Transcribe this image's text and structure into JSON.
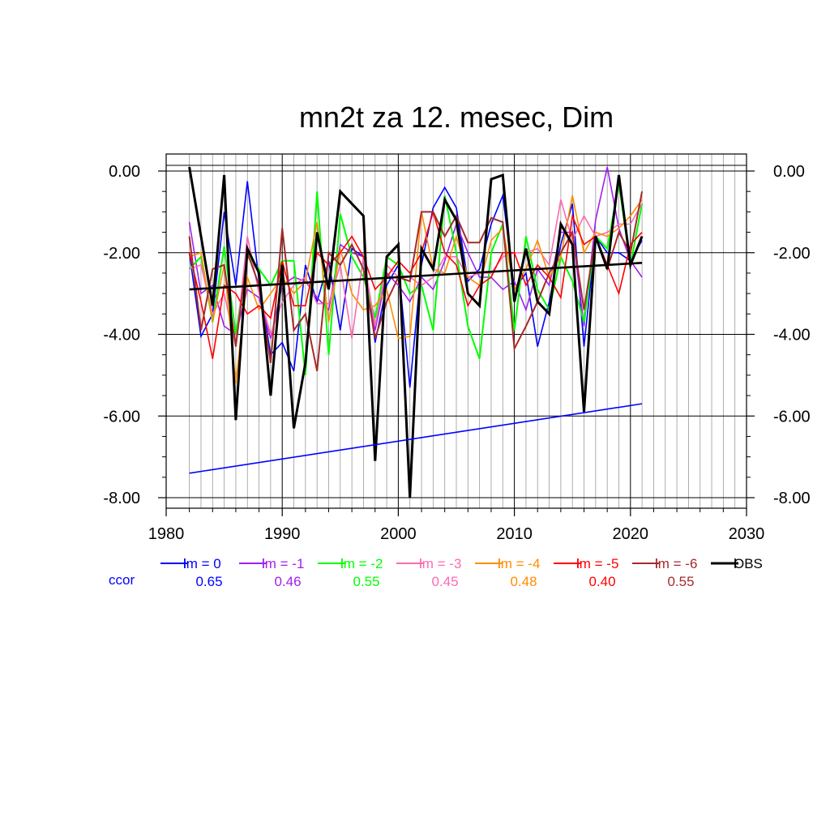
{
  "chart_data": {
    "type": "line",
    "title": "mn2t za 12. mesec, Dim",
    "xlabel": "",
    "ylabel": "",
    "xlim": [
      1980,
      2030
    ],
    "ylim": [
      -8,
      0.3
    ],
    "x_ticks": [
      "1980",
      "1990",
      "2000",
      "2010",
      "2020",
      "2030"
    ],
    "y_ticks": [
      "0.00",
      "-2.00",
      "-4.00",
      "-6.00",
      "-8.00"
    ],
    "y_tick_values": [
      0,
      -2,
      -4,
      -6,
      -8
    ],
    "x_tick_values": [
      1980,
      1990,
      2000,
      2010,
      2020,
      2030
    ],
    "grid": true,
    "legend_position": "bottom",
    "ccor_label": "ccor",
    "x": [
      1982,
      1983,
      1984,
      1985,
      1986,
      1987,
      1988,
      1989,
      1990,
      1991,
      1992,
      1993,
      1994,
      1995,
      1996,
      1997,
      1998,
      1999,
      2000,
      2001,
      2002,
      2003,
      2004,
      2005,
      2006,
      2007,
      2008,
      2009,
      2010,
      2011,
      2012,
      2013,
      2014,
      2015,
      2016,
      2017,
      2018,
      2019,
      2020,
      2021
    ],
    "series": [
      {
        "name": "lm = 0",
        "color": "#0000ff",
        "ccor": "0.65",
        "width": 1.6,
        "values": [
          -2.0,
          -4.05,
          -3.5,
          -1.0,
          -2.8,
          -0.25,
          -2.7,
          -4.5,
          -4.2,
          -4.9,
          -2.3,
          -3.2,
          -2.2,
          -3.9,
          -1.9,
          -2.1,
          -4.2,
          -2.8,
          -2.3,
          -5.3,
          -2.3,
          -0.9,
          -0.4,
          -0.9,
          -2.7,
          -2.4,
          -1.3,
          -0.6,
          -2.9,
          -2.5,
          -4.3,
          -3.2,
          -1.8,
          -0.8,
          -4.3,
          -1.6,
          -2.0,
          -2.0,
          -2.2,
          -1.7
        ]
      },
      {
        "name": "lm = -1",
        "color": "#a020f0",
        "ccor": "0.46",
        "width": 1.6,
        "values": [
          -1.25,
          -3.0,
          -2.8,
          -3.8,
          -4.0,
          -2.9,
          -3.1,
          -4.1,
          -2.8,
          -2.6,
          -2.7,
          -3.1,
          -3.4,
          -1.8,
          -2.0,
          -2.1,
          -3.9,
          -2.5,
          -2.8,
          -3.2,
          -2.6,
          -2.9,
          -2.2,
          -1.3,
          -2.0,
          -2.6,
          -2.6,
          -2.9,
          -2.7,
          -3.4,
          -2.4,
          -2.8,
          -1.5,
          -1.5,
          -3.8,
          -1.2,
          0.1,
          -1.4,
          -2.2,
          -2.6
        ]
      },
      {
        "name": "lm = -2",
        "color": "#00ff00",
        "ccor": "0.55",
        "width": 2.0,
        "values": [
          -2.4,
          -2.1,
          -3.7,
          -1.85,
          -4.0,
          -2.1,
          -2.4,
          -2.8,
          -2.2,
          -2.2,
          -5.0,
          -0.5,
          -4.5,
          -1.05,
          -2.1,
          -2.6,
          -3.6,
          -2.1,
          -2.3,
          -3.0,
          -2.8,
          -3.9,
          -0.6,
          -2.0,
          -3.8,
          -4.6,
          -2.0,
          -1.3,
          -3.9,
          -1.6,
          -2.9,
          -3.4,
          -2.1,
          -2.7,
          -3.7,
          -1.6,
          -1.9,
          -0.3,
          -2.3,
          -0.8
        ]
      },
      {
        "name": "lm = -3",
        "color": "#ff69b4",
        "ccor": "0.45",
        "width": 1.6,
        "values": [
          -2.4,
          -2.3,
          -3.5,
          -3.0,
          -4.3,
          -1.6,
          -3.0,
          -4.0,
          -3.2,
          -2.8,
          -2.6,
          -3.25,
          -3.25,
          -2.3,
          -4.1,
          -2.1,
          -3.8,
          -2.3,
          -2.6,
          -2.6,
          -2.8,
          -2.6,
          -2.1,
          -2.1,
          -2.6,
          -2.5,
          -2.5,
          -2.1,
          -2.0,
          -2.0,
          -1.9,
          -2.3,
          -0.7,
          -1.7,
          -1.1,
          -1.6,
          -1.5,
          -1.3,
          -1.3,
          -0.8
        ]
      },
      {
        "name": "lm = -4",
        "color": "#ff8c00",
        "ccor": "0.48",
        "width": 1.6,
        "values": [
          -2.1,
          -2.0,
          -3.7,
          -2.3,
          -5.2,
          -2.6,
          -3.4,
          -3.0,
          -2.6,
          -3.0,
          -2.7,
          -1.25,
          -3.7,
          -1.9,
          -3.0,
          -3.4,
          -3.3,
          -2.9,
          -4.1,
          -4.05,
          -1.0,
          -2.4,
          -2.5,
          -1.6,
          -2.6,
          -2.8,
          -1.7,
          -1.4,
          -2.9,
          -2.4,
          -1.7,
          -2.6,
          -2.1,
          -0.6,
          -2.0,
          -1.5,
          -1.6,
          -1.4,
          -1.1,
          -0.7
        ]
      },
      {
        "name": "lm = -5",
        "color": "#ff0000",
        "ccor": "0.40",
        "width": 1.6,
        "values": [
          -2.0,
          -3.2,
          -4.6,
          -2.8,
          -3.0,
          -3.5,
          -3.3,
          -3.6,
          -2.2,
          -3.3,
          -3.3,
          -2.0,
          -2.3,
          -2.0,
          -1.6,
          -2.1,
          -2.9,
          -2.6,
          -2.2,
          -2.5,
          -2.0,
          -1.0,
          -2.0,
          -2.3,
          -3.3,
          -2.8,
          -2.6,
          -2.0,
          -2.0,
          -2.8,
          -2.3,
          -2.6,
          -3.1,
          -1.1,
          -1.8,
          -1.6,
          -2.3,
          -3.0,
          -1.8,
          -1.5
        ]
      },
      {
        "name": "lm = -6",
        "color": "#a52a2a",
        "ccor": "0.55",
        "width": 2.0,
        "values": [
          -1.6,
          -3.9,
          -2.4,
          -2.3,
          -4.3,
          -2.0,
          -2.8,
          -4.7,
          -1.4,
          -3.9,
          -3.5,
          -4.9,
          -2.0,
          -2.3,
          -1.8,
          -2.4,
          -4.1,
          -3.2,
          -2.6,
          -2.7,
          -1.0,
          -1.0,
          -1.6,
          -1.1,
          -1.75,
          -1.75,
          -1.15,
          -1.25,
          -4.35,
          -3.8,
          -3.2,
          -2.5,
          -2.0,
          -1.5,
          -3.4,
          -1.6,
          -2.4,
          -1.5,
          -2.0,
          -0.5
        ]
      },
      {
        "name": "OBS",
        "color": "#000000",
        "ccor": "",
        "width": 3.0,
        "values": [
          0.1,
          -1.6,
          -3.3,
          -0.1,
          -6.1,
          -1.9,
          -2.5,
          -5.5,
          -2.3,
          -6.3,
          -4.7,
          -1.5,
          -2.9,
          -0.5,
          -0.8,
          -1.1,
          -7.1,
          -2.1,
          -1.8,
          -8.0,
          -1.9,
          -2.4,
          -0.7,
          -1.2,
          -3.0,
          -3.3,
          -0.2,
          -0.1,
          -3.2,
          -1.9,
          -3.2,
          -3.5,
          -1.3,
          -1.8,
          -5.9,
          -1.6,
          -2.4,
          -0.1,
          -2.3,
          -1.6
        ]
      }
    ],
    "trend_lines": [
      {
        "color": "#000000",
        "width": 2.6,
        "x": [
          1982,
          2021
        ],
        "y": [
          -2.9,
          -2.25
        ]
      },
      {
        "color": "#0000ff",
        "width": 1.6,
        "x": [
          1982,
          2021
        ],
        "y": [
          -7.4,
          -5.7
        ]
      }
    ]
  }
}
